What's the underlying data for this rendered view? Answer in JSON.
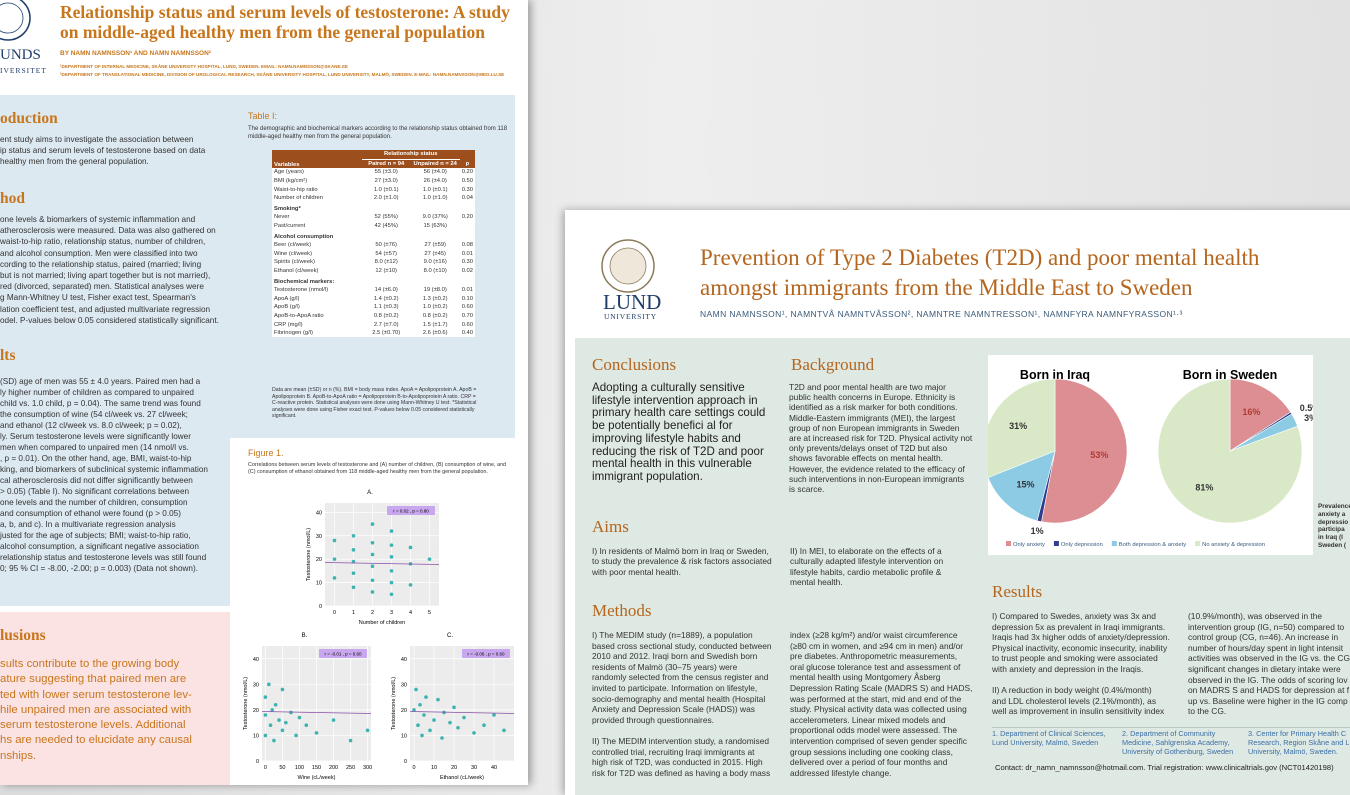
{
  "left_poster": {
    "logo": [
      "UNDS",
      "IVERSITET"
    ],
    "title": [
      "Relationship status and serum levels of testosterone: A study",
      "on middle-aged healthy men from the general population"
    ],
    "authors": "BY NAMN NAMNSSON¹ AND NAMN NAMNSSON²",
    "affiliations": [
      "¹DEPARTMENT OF INTERNAL MEDICINE, SKÅNE UNIVERSITY HOSPITAL, LUND, SWEDEN. EMAIL: NAMN.NAMNSSON@SKANE.SE",
      "²DEPARTMENT OF TRANSLATIONAL MEDICINE, DIVISION OF UROLOGICAL RESEARCH, SKÅNE UNIVERSITY HOSPITAL, LUND UNIVERSITY, MALMÖ, SWEDEN. E-MAIL: NAMN.NAMNSSON@MED.LU.SE"
    ],
    "intro": {
      "heading": "oduction",
      "lines": [
        "ent study aims to investigate the association between",
        "ip status and serum levels of testosterone based on data",
        "healthy men from the general population."
      ]
    },
    "methods": {
      "heading": "hod",
      "lines": [
        "one levels & biomarkers of systemic inflammation and",
        "atherosclerosis were measured. Data was also gathered on",
        "waist-to-hip ratio, relationship status, number of children,",
        "and alcohol consumption. Men were classified into two",
        "cording to the relationship status, paired (married; living",
        "but is not married; living apart together but is not married),",
        "red (divorced, separated) men. Statistical analyses were",
        "g Mann-Whitney U test, Fisher exact test, Spearman's",
        "lation coefficient test, and adjusted multivariate regression",
        "odel. P-values below 0.05 considered statistically significant."
      ]
    },
    "results": {
      "heading": "lts",
      "lines": [
        "(SD) age of men was 55 ± 4.0 years. Paired men had a",
        "ly higher number of children as compared to unpaired",
        "child vs. 1.0 child, p = 0.04). The same trend was found",
        "the consumption of wine (54 cl/week vs. 27 cl/week;",
        "and ethanol (12 cl/week vs. 8.0 cl/week; p = 0.02),",
        "ly. Serum testosterone levels were significantly lower",
        "men when compared to unpaired men (14 nmol/l vs.",
        ", p = 0.01). On the other hand, age, BMI, waist-to-hip",
        "king, and biomarkers of subclinical systemic inflammation",
        "cal atherosclerosis did not differ significantly between",
        "> 0.05) (Table I). No significant correlations between",
        "one levels and the number of children, consumption",
        "and consumption of ethanol were found (p > 0.05)",
        "a, b, and c). In a multivariate regression analysis",
        "justed for the age of subjects; BMI; waist-to-hip ratio,",
        "alcohol consumption, a significant negative association",
        "relationship status and testosterone levels was still found",
        "0; 95 % CI = -8.00, -2.00; p = 0.003) (Data not shown)."
      ]
    },
    "conclusions": {
      "heading": "lusions",
      "lines": [
        "sults contribute to the growing body",
        "ature suggesting that paired men are",
        "ted with lower serum testosterone lev-",
        "hile unpaired men are associated with",
        " serum testosterone levels. Additional",
        "hs are needed to elucidate any causal",
        "nships."
      ]
    },
    "table": {
      "title": "Table I:",
      "caption": "The demographic and biochemical markers according to the relationship status obtained from 118 middle-aged healthy men from the general population.",
      "group_header": "Relationship status",
      "columns": [
        "Variables",
        "Paired n = 94",
        "Unpaired n = 24",
        "p"
      ],
      "rows": [
        [
          "Age (years)",
          "55 (±3.0)",
          "56 (±4.0)",
          "0.20"
        ],
        [
          "BMI (kg/cm²)",
          "27 (±3.0)",
          "26 (±4.0)",
          "0.50"
        ],
        [
          "Waist-to-hip ratio",
          "1.0 (±0.1)",
          "1.0 (±0.1)",
          "0.30"
        ],
        [
          "Number of children",
          "2.0 (±1.0)",
          "1.0 (±1.0)",
          "0.04"
        ],
        [
          "Smoking*"
        ],
        [
          "Never",
          "52 (55%)",
          "9.0 (37%)",
          "0.20"
        ],
        [
          "Past/current",
          "42 (45%)",
          "15 (63%)"
        ],
        [
          "Alcohol consumption"
        ],
        [
          "Beer (cl/week)",
          "50 (±76)",
          "27 (±59)",
          "0.08"
        ],
        [
          "Wine (cl/week)",
          "54 (±57)",
          "27 (±45)",
          "0.01"
        ],
        [
          "Spirits (cl/week)",
          "8.0 (±12)",
          "9.0 (±16)",
          "0.30"
        ],
        [
          "Ethanol (cl/week)",
          "12 (±10)",
          "8.0 (±10)",
          "0.02"
        ],
        [
          "Biochemical markers:"
        ],
        [
          "Testosterone (nmol/l)",
          "14 (±6.0)",
          "19 (±8.0)",
          "0.01"
        ],
        [
          "ApoA (g/l)",
          "1.4 (±0.2)",
          "1.3 (±0.2)",
          "0.10"
        ],
        [
          "ApoB (g/l)",
          "1.1 (±0.3)",
          "1.0 (±0.2)",
          "0.60"
        ],
        [
          "ApoB-to-ApoA ratio",
          "0.8 (±0.2)",
          "0.8 (±0.2)",
          "0.70"
        ],
        [
          "CRP (mg/l)",
          "2.7 (±7.0)",
          "1.5 (±1.7)",
          "0.60"
        ],
        [
          "Fibrinogen (g/l)",
          "2.5 (±0.70)",
          "2.6 (±0.6)",
          "0.40"
        ]
      ],
      "note": "Data are mean (±SD) or n (%). BMI = body mass index. ApoA = Apolipoprotein A. ApoB = Apolipoprotein B. ApoB-to-ApoA ratio = Apolipoprotein B-to-Apolipoprotein A ratio. CRP = C-reactive protein. Statistical analyses were done using Mann-Whitney U test. *Statistical analyses were done using Fisher exact test. P-values below 0.05 considered statistically significant."
    },
    "figure": {
      "title": "Figure 1.",
      "caption": "Correlations between serum levels of testosterone and (A) number of children, (B) consumption of wine, and (C) consumption of ethanol obtained from 118 middle-aged healthy men from the general population.",
      "plots": [
        {
          "label": "A.",
          "stat": "r = 0.02 , p = 0.80",
          "xlabel": "Number of children",
          "ylabel": "Testosterone (nmol/L)",
          "xlim": [
            -0.5,
            5.5
          ],
          "ylim": [
            0,
            44
          ],
          "xticks": [
            0,
            1,
            2,
            3,
            4,
            5
          ],
          "yticks": [
            0,
            10,
            20,
            30,
            40
          ],
          "x": [
            0,
            0,
            0,
            1,
            1,
            1,
            1,
            1,
            2,
            2,
            2,
            2,
            2,
            2,
            3,
            3,
            3,
            3,
            3,
            3,
            4,
            4,
            4,
            5
          ],
          "y": [
            12,
            20,
            28,
            8,
            14,
            19,
            24,
            30,
            6,
            11,
            17,
            22,
            27,
            35,
            5,
            10,
            15,
            21,
            26,
            32,
            9,
            18,
            25,
            20
          ]
        },
        {
          "label": "B.",
          "stat": "r = -0.01 , p = 0.60",
          "xlabel": "Wine (cL/week)",
          "ylabel": "Testosterone (nmol/L)",
          "xlim": [
            -10,
            310
          ],
          "ylim": [
            0,
            45
          ],
          "xticks": [
            0,
            50,
            100,
            150,
            200,
            250,
            300
          ],
          "yticks": [
            0,
            10,
            20,
            30,
            40
          ],
          "x": [
            0,
            0,
            0,
            10,
            15,
            20,
            25,
            30,
            40,
            50,
            50,
            60,
            75,
            90,
            100,
            120,
            150,
            200,
            250,
            300
          ],
          "y": [
            25,
            18,
            10,
            30,
            14,
            20,
            8,
            22,
            16,
            12,
            28,
            15,
            19,
            10,
            17,
            14,
            11,
            16,
            8,
            12
          ]
        },
        {
          "label": "C.",
          "stat": "r = -0.06 , p = 0.60",
          "xlabel": "Ethanol (cL/week)",
          "ylabel": "Testosterone (nmol/L)",
          "xlim": [
            -2,
            50
          ],
          "ylim": [
            0,
            45
          ],
          "xticks": [
            0,
            10,
            20,
            30,
            40
          ],
          "yticks": [
            0,
            10,
            20,
            30,
            40
          ],
          "x": [
            0,
            1,
            2,
            3,
            4,
            5,
            6,
            8,
            10,
            12,
            14,
            15,
            18,
            20,
            22,
            25,
            30,
            35,
            40,
            45
          ],
          "y": [
            20,
            28,
            14,
            22,
            10,
            18,
            25,
            12,
            16,
            24,
            9,
            19,
            15,
            21,
            13,
            17,
            11,
            14,
            18,
            12
          ]
        }
      ]
    }
  },
  "right_poster": {
    "logo": [
      "LUND",
      "UNIVERSITY"
    ],
    "title": [
      "Prevention of Type 2 Diabetes (T2D) and poor mental health",
      "amongst immigrants from the Middle East to Sweden"
    ],
    "authors": "NAMN NAMNSSON¹, NAMNTVÅ NAMNTVÅSSON², NAMNTRE NAMNTRESSON¹, NAMNFYRA NAMNFYRASSON¹·³",
    "conclusions": {
      "heading": "Conclusions",
      "lines": [
        "Adopting a culturally sensitive",
        "lifestyle intervention approach in",
        "primary health care settings could",
        "be potentially benefici al for",
        "improving lifestyle habits and",
        "reducing the risk of T2D and poor",
        "mental health in this vulnerable",
        "immigrant population."
      ]
    },
    "background": {
      "heading": "Background",
      "lines": [
        "T2D and poor mental health are two major",
        "public health concerns in Europe. Ethnicity is",
        "identified as a risk marker for both conditions.",
        "Middle-Eastern immigrants (MEI), the largest",
        "group of non European immigrants in Sweden",
        "are at increased risk for T2D. Physical activity not",
        "only prevents/delays onset of T2D but also",
        "shows favorable effects on mental health.",
        "However, the evidence related to the efficacy of",
        "such interventions in non-European immigrants",
        "is scarce."
      ]
    },
    "aims": {
      "heading": "Aims",
      "col1": [
        "I) In residents of Malmö born in Iraq or Sweden,",
        "to study the prevalence & risk factors associated",
        "with poor mental health."
      ],
      "col2": [
        "II) In MEI, to elaborate on the effects of a",
        "culturally adapted lifestyle intervention on",
        "lifestyle habits, cardio metabolic profile &",
        "mental health."
      ]
    },
    "methods": {
      "heading": "Methods",
      "col1": [
        [
          "I) The MEDIM study (n=1889), a population",
          "based cross sectional study, conducted between",
          "2010 and 2012. Iraqi born and Swedish born",
          "residents of Malmö (30–75 years) were",
          "randomly selected from the census register and",
          "invited to participate. Information on lifestyle,",
          "socio-demography and mental health (Hospital",
          "Anxiety and Depression Scale (HADS)) was",
          "provided through questionnaires."
        ],
        [
          "II) The MEDIM intervention study, a randomised",
          "controlled trial, recruiting Iraqi immigrants at",
          "high risk of T2D, was conducted in 2015. High",
          "risk for T2D was defined as having a body mass"
        ]
      ],
      "col2": [
        [
          "index (≥28 kg/m²) and/or waist circumference",
          "(≥80 cm in women, and ≥94 cm in men) and/or",
          "pre diabetes. Anthropometric measurements,",
          "oral glucose tolerance test and assessment of",
          "mental health using Montgomery Åsberg",
          "Depression Rating Scale (MADRS S) and HADS,",
          "was performed at the start, mid and end of the",
          "study. Physical activity data was collected using",
          "accelerometers. Linear mixed models and",
          "proportional odds model were assessed. The",
          "intervention comprised of seven gender specific",
          "group sessions including one cooking class,",
          "delivered over a period of four months and",
          "addressed lifestyle change."
        ]
      ]
    },
    "results": {
      "heading": "Results",
      "col1": [
        [
          "I) Compared to Swedes, anxiety was 3x and",
          "depression 5x as prevalent in Iraqi immigrants.",
          "Iraqis had 3x higher odds of anxiety/depression.",
          "Physical inactivity, economic insecurity, inability",
          "to trust people and smoking were associated",
          "with anxiety and depression in the Iraqis."
        ],
        [
          "II) A reduction in body weight  (0.4%/month)",
          "and LDL cholesterol levels  (2.1%/month), as",
          "well as improvement in insulin sensitivity index"
        ]
      ],
      "col2": [
        [
          "(10.9%/month),  was observed in the",
          "intervention group (IG, n=50) compared to",
          "control group (CG, n=46). An increase in",
          "number of hours/day spent in light intensit",
          "activities was observed in the IG vs. the CG",
          "significant changes in dietary intake were",
          "observed in the IG. The odds of scoring lov",
          "on MADRS S and HADS for depression at f",
          "up vs. Baseline were higher in the IG comp",
          "to the CG."
        ]
      ]
    },
    "pies": {
      "legend": [
        "Only anxiety",
        "Only depression",
        "Both depression & anxiety",
        "No anxiety & depression"
      ],
      "colors": [
        "#dc8e92",
        "#2f3f8e",
        "#8dcbe5",
        "#d9e8c6"
      ],
      "charts": [
        {
          "title": "Born in Iraq",
          "values": [
            53,
            1,
            15,
            31
          ],
          "value_labels": [
            "53%",
            "1%",
            "15%",
            "31%"
          ]
        },
        {
          "title": "Born in Sweden",
          "values": [
            16,
            0.5,
            3,
            81
          ],
          "value_labels": [
            "16%",
            "0.5%",
            "3%",
            "81%"
          ]
        }
      ],
      "side_note": [
        "Prevalence",
        "anxiety a",
        "depressio",
        "participa",
        "in Iraq (I",
        "Sweden ("
      ]
    },
    "affiliations": [
      [
        "1. Department of Clinical Sciences,",
        "Lund University, Malmö, Sweden"
      ],
      [
        "2. Department of Community",
        "Medicine, Sahlgrenska Academy,",
        "University of Gothenburg, Sweden"
      ],
      [
        "3. Center for Primary Health C",
        "Research, Region Skåne and L",
        "University, Malmö, Sweden."
      ]
    ],
    "contact": "Contact: dr_namn_namnsson@hotmail.com. Trial registration: www.clinicaltrials.gov (NCT01420198)"
  }
}
